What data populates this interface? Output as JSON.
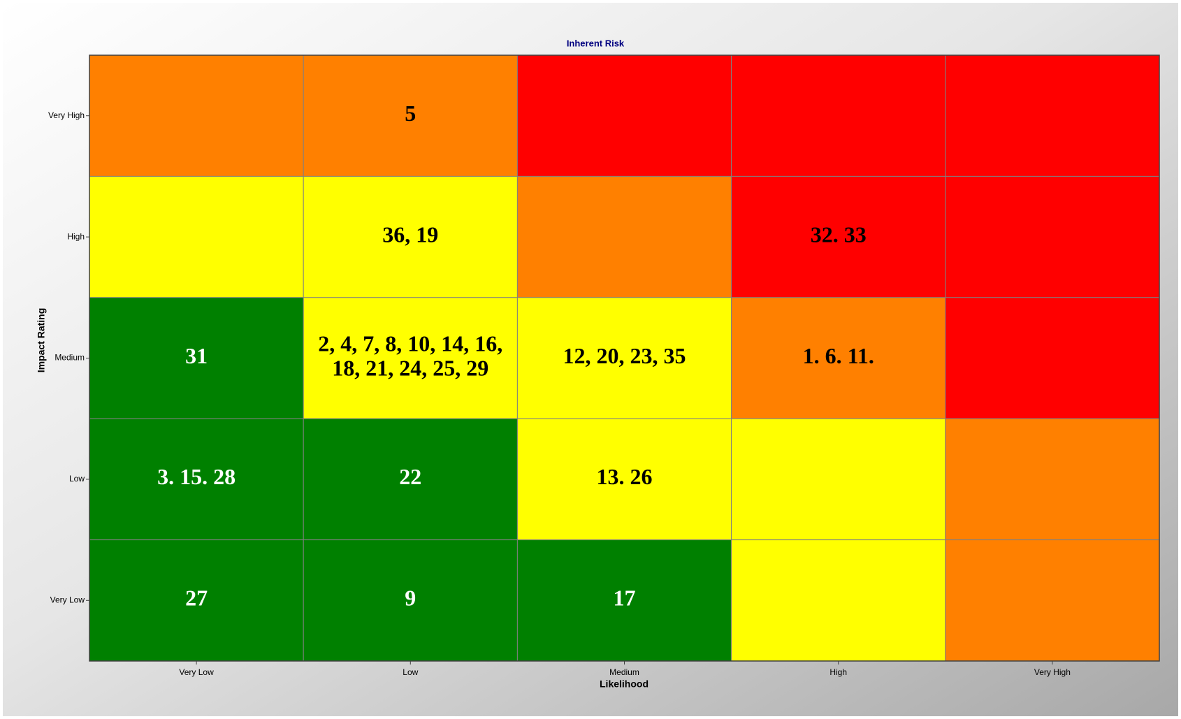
{
  "chart_data": {
    "type": "heatmap",
    "title": "Inherent Risk",
    "x_label": "Likelihood",
    "y_label": "Impact Rating",
    "x_categories": [
      "Very Low",
      "Low",
      "Medium",
      "High",
      "Very High"
    ],
    "y_categories": [
      "Very High",
      "High",
      "Medium",
      "Low",
      "Very Low"
    ],
    "rows": [
      [
        {
          "color": "#ff8000"
        },
        {
          "color": "#ff8000",
          "lines": [
            "5"
          ]
        },
        {
          "color": "#ff0000"
        },
        {
          "color": "#ff0000"
        },
        {
          "color": "#ff0000"
        }
      ],
      [
        {
          "color": "#ffff00"
        },
        {
          "color": "#ffff00",
          "lines": [
            "36, 19"
          ]
        },
        {
          "color": "#ff8000"
        },
        {
          "color": "#ff0000",
          "lines": [
            "32. 33"
          ]
        },
        {
          "color": "#ff0000"
        }
      ],
      [
        {
          "color": "#008000",
          "lines": [
            "31"
          ]
        },
        {
          "color": "#ffff00",
          "lines": [
            "2, 4, 7, 8, 10, 14, 16,",
            "18, 21, 24, 25, 29"
          ]
        },
        {
          "color": "#ffff00",
          "lines": [
            "12, 20, 23, 35"
          ]
        },
        {
          "color": "#ff8000",
          "lines": [
            "1. 6. 11."
          ]
        },
        {
          "color": "#ff0000"
        }
      ],
      [
        {
          "color": "#008000",
          "lines": [
            "3. 15. 28"
          ]
        },
        {
          "color": "#008000",
          "lines": [
            "22"
          ]
        },
        {
          "color": "#ffff00",
          "lines": [
            "13. 26"
          ]
        },
        {
          "color": "#ffff00"
        },
        {
          "color": "#ff8000"
        }
      ],
      [
        {
          "color": "#008000",
          "lines": [
            "27"
          ]
        },
        {
          "color": "#008000",
          "lines": [
            "9"
          ]
        },
        {
          "color": "#008000",
          "lines": [
            "17"
          ]
        },
        {
          "color": "#ffff00"
        },
        {
          "color": "#ff8000"
        }
      ]
    ]
  }
}
